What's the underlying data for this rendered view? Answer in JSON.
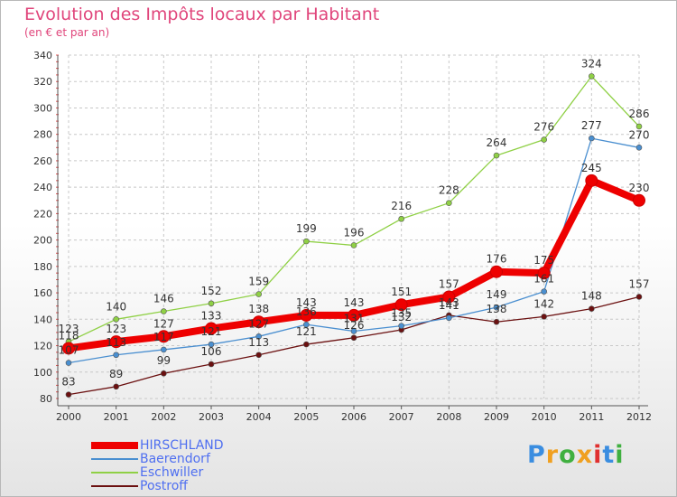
{
  "chart_data": {
    "type": "line",
    "title": "Evolution des Impôts locaux par Habitant",
    "subtitle": "(en € et par an)",
    "x": [
      "2000",
      "2001",
      "2002",
      "2003",
      "2004",
      "2005",
      "2006",
      "2007",
      "2008",
      "2009",
      "2010",
      "2011",
      "2012"
    ],
    "ylim": [
      80,
      340
    ],
    "yticks": [
      80,
      100,
      120,
      140,
      160,
      180,
      200,
      220,
      240,
      260,
      280,
      300,
      320,
      340
    ],
    "grid": true,
    "legend_position": "bottom-left",
    "series": [
      {
        "name": "HIRSCHLAND",
        "color": "#ee0000",
        "values": [
          118,
          123,
          127,
          133,
          138,
          143,
          143,
          151,
          157,
          176,
          175,
          245,
          230
        ]
      },
      {
        "name": "Baerendorf",
        "color": "#4a8fd0",
        "values": [
          107,
          113,
          117,
          121,
          127,
          136,
          131,
          135,
          141,
          149,
          161,
          277,
          270
        ]
      },
      {
        "name": "Eschwiller",
        "color": "#8fd045",
        "values": [
          123,
          140,
          146,
          152,
          159,
          199,
          196,
          216,
          228,
          264,
          276,
          324,
          286
        ]
      },
      {
        "name": "Postroff",
        "color": "#6b1010",
        "values": [
          83,
          89,
          99,
          106,
          113,
          121,
          126,
          132,
          143,
          138,
          142,
          148,
          157
        ]
      }
    ]
  },
  "logo": {
    "text": "Proxiti",
    "colors": [
      "#3a8de0",
      "#f0a020",
      "#40b040",
      "#f0a020",
      "#e03030",
      "#3a8de0",
      "#40b040"
    ]
  }
}
